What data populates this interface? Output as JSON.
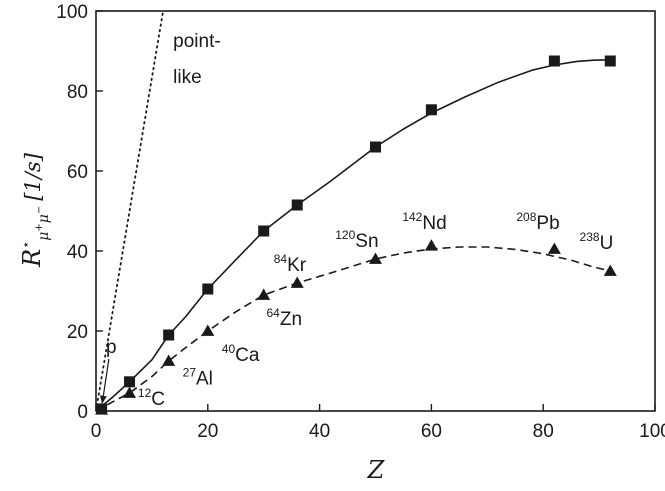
{
  "chart_data": {
    "type": "scatter",
    "title": "",
    "xlabel": "Z",
    "ylabel": "R⋆ μ+μ− [1/s]",
    "ylabel_parts": {
      "base": "R",
      "star": "⋆",
      "sub": "μ",
      "sub_sup1": "+",
      "sub_mid": "μ",
      "sub_sup2": "−",
      "unit": "[1/s]"
    },
    "xlim": [
      0,
      100
    ],
    "ylim": [
      0,
      100
    ],
    "xticks": [
      0,
      20,
      40,
      60,
      80,
      100
    ],
    "yticks": [
      0,
      20,
      40,
      60,
      80,
      100
    ],
    "grid": false,
    "legend": "none",
    "series": [
      {
        "marker": "square",
        "line": "solid",
        "x": [
          1,
          6,
          13,
          20,
          30,
          36,
          50,
          60,
          82,
          92
        ],
        "y": [
          0.5,
          7.3,
          19,
          30.5,
          45,
          51.5,
          66,
          75.3,
          87.5,
          87.5
        ],
        "fit_x": [
          0,
          3,
          6,
          10,
          13,
          16,
          20,
          25,
          30,
          36,
          42,
          50,
          55,
          60,
          66,
          72,
          78,
          82,
          86,
          89,
          92
        ],
        "fit_y": [
          0,
          3.5,
          7.3,
          12.8,
          19,
          23.5,
          30.5,
          37.8,
          45,
          51.5,
          57.5,
          66,
          70.5,
          74.5,
          78.5,
          82.2,
          85.2,
          86.5,
          87.4,
          87.7,
          87.8
        ]
      },
      {
        "marker": "triangle",
        "line": "dashed",
        "x": [
          1,
          6,
          13,
          20,
          30,
          36,
          50,
          60,
          82,
          92
        ],
        "y": [
          0.3,
          4.5,
          12.5,
          20,
          29,
          32,
          38,
          41.3,
          40.5,
          35
        ],
        "fit_x": [
          0,
          3,
          6,
          10,
          13,
          16,
          20,
          25,
          30,
          36,
          42,
          50,
          55,
          60,
          65,
          70,
          75,
          80,
          85,
          89,
          92
        ],
        "fit_y": [
          0,
          2.3,
          4.5,
          8.6,
          12.5,
          15.8,
          20,
          24.8,
          29,
          32,
          34.5,
          38,
          39.5,
          40.5,
          41,
          41,
          40.4,
          39.3,
          37.7,
          36,
          35
        ]
      },
      {
        "marker": "none",
        "line": "dotted",
        "x": [
          0,
          12
        ],
        "y": [
          0,
          100
        ]
      }
    ],
    "annotations": [
      {
        "pre": "",
        "main": "point-",
        "x": 13.8,
        "y": 91
      },
      {
        "pre": "",
        "main": "like",
        "x": 13.8,
        "y": 82
      },
      {
        "pre": "",
        "main": "p",
        "x": 1.8,
        "y": 14.5
      },
      {
        "pre": "12",
        "main": "C",
        "x": 7.5,
        "y": 1.5
      },
      {
        "pre": "27",
        "main": "Al",
        "x": 15.5,
        "y": 6.6
      },
      {
        "pre": "40",
        "main": "Ca",
        "x": 22.5,
        "y": 12.5
      },
      {
        "pre": "64",
        "main": "Zn",
        "x": 30.5,
        "y": 21.5
      },
      {
        "pre": "84",
        "main": "Kr",
        "x": 31.8,
        "y": 35
      },
      {
        "pre": "120",
        "main": "Sn",
        "x": 42.8,
        "y": 41
      },
      {
        "pre": "142",
        "main": "Nd",
        "x": 54.8,
        "y": 45.5
      },
      {
        "pre": "208",
        "main": "Pb",
        "x": 75.2,
        "y": 45.5
      },
      {
        "pre": "238",
        "main": "U",
        "x": 86.5,
        "y": 40.5
      }
    ]
  }
}
